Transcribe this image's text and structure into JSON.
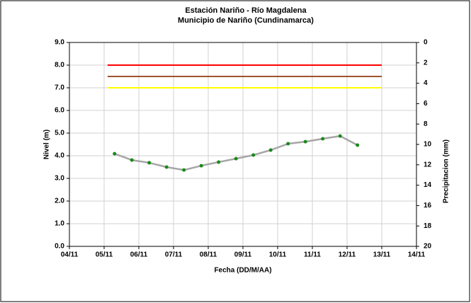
{
  "chart_data": {
    "type": "line",
    "title": "Estación Nariño  - Río Magdalena",
    "subtitle": "Municipio de Nariño (Cundinamarca)",
    "x_label": "Fecha (DD/M/AA)",
    "y_label": "Nivel (m)",
    "y2_label": "Precipitacion (mm)",
    "x": [
      5.3,
      5.8,
      6.3,
      6.8,
      7.3,
      7.8,
      8.3,
      8.8,
      9.3,
      9.8,
      10.3,
      10.8,
      11.3,
      11.8,
      12.3
    ],
    "series": [
      {
        "color": "#a6a6a6",
        "marker_color": "#1a8a1a",
        "values": [
          4.09,
          3.81,
          3.69,
          3.5,
          3.37,
          3.56,
          3.72,
          3.87,
          4.03,
          4.25,
          4.53,
          4.62,
          4.75,
          4.87,
          4.47
        ]
      }
    ],
    "thresholds": [
      {
        "value": 8.0,
        "color": "#ff0000",
        "x": [
          5.1,
          13.0
        ]
      },
      {
        "value": 7.5,
        "color": "#a0522d",
        "x": [
          5.1,
          13.0
        ]
      },
      {
        "value": 7.0,
        "color": "#ffff00",
        "x": [
          5.1,
          13.0
        ]
      }
    ],
    "xlim": [
      4,
      14
    ],
    "xticks": [
      {
        "value": 4,
        "label": "04/11"
      },
      {
        "value": 5,
        "label": "05/11"
      },
      {
        "value": 6,
        "label": "06/11"
      },
      {
        "value": 7,
        "label": "07/11"
      },
      {
        "value": 8,
        "label": "08/11"
      },
      {
        "value": 9,
        "label": "09/11"
      },
      {
        "value": 10,
        "label": "10/11"
      },
      {
        "value": 11,
        "label": "11/11"
      },
      {
        "value": 12,
        "label": "12/11"
      },
      {
        "value": 13,
        "label": "13/11"
      },
      {
        "value": 14,
        "label": "14/11"
      }
    ],
    "ylim": [
      0,
      9
    ],
    "yticks": [
      {
        "value": 0,
        "label": "0.0"
      },
      {
        "value": 1,
        "label": "1.0"
      },
      {
        "value": 2,
        "label": "2.0"
      },
      {
        "value": 3,
        "label": "3.0"
      },
      {
        "value": 4,
        "label": "4.0"
      },
      {
        "value": 5,
        "label": "5.0"
      },
      {
        "value": 6,
        "label": "6.0"
      },
      {
        "value": 7,
        "label": "7.0"
      },
      {
        "value": 8,
        "label": "8.0"
      },
      {
        "value": 9,
        "label": "9.0"
      }
    ],
    "y2lim": [
      0,
      20
    ],
    "y2_inverted": true,
    "y2ticks": [
      0,
      2,
      4,
      6,
      8,
      10,
      12,
      14,
      16,
      18,
      20
    ],
    "grid": true
  }
}
